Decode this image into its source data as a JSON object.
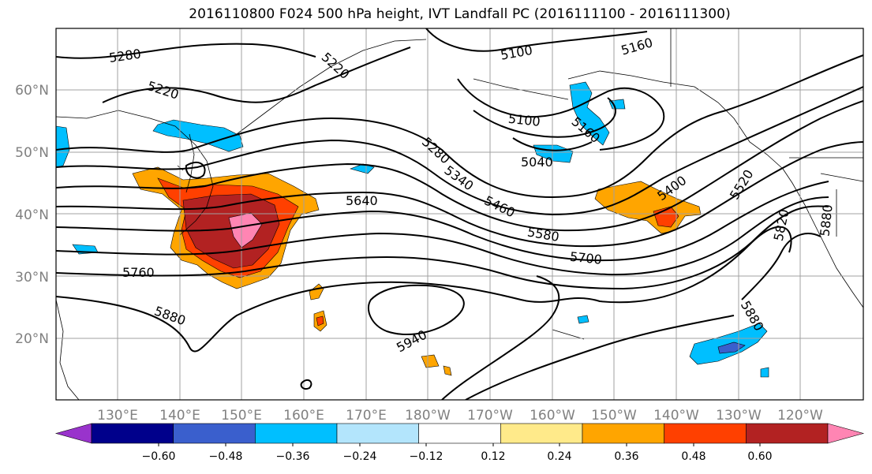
{
  "title": "2016110800 F024 500 hPa height, IVT Landfall PC (2016111100 - 2016111300)",
  "lat_labels": [
    "60°N",
    "50°N",
    "40°N",
    "30°N",
    "20°N"
  ],
  "lon_labels": [
    "130°E",
    "140°E",
    "150°E",
    "160°E",
    "170°E",
    "180°W",
    "170°W",
    "160°W",
    "150°W",
    "140°W",
    "130°W",
    "120°W"
  ],
  "contour_labels": [
    "5280",
    "5220",
    "5220",
    "5100",
    "5160",
    "5100",
    "5160",
    "5040",
    "5280",
    "5340",
    "5460",
    "5640",
    "5580",
    "5700",
    "5400",
    "5520",
    "5820",
    "5880",
    "5760",
    "5880",
    "5940",
    "5880"
  ],
  "colorbar": {
    "ticks": [
      "−0.60",
      "−0.48",
      "−0.36",
      "−0.24",
      "−0.12",
      "0.12",
      "0.24",
      "0.36",
      "0.48",
      "0.60"
    ],
    "colors": [
      "#9933cc",
      "#00008b",
      "#3a5fcd",
      "#00bfff",
      "#b3e5fc",
      "#ffffff",
      "#ffea8a",
      "#ffa500",
      "#ff4000",
      "#b22222",
      "#ff85b3"
    ]
  },
  "colors": {
    "grid": "#a0a0a0",
    "tick_label": "#808080",
    "contour": "#000000"
  }
}
